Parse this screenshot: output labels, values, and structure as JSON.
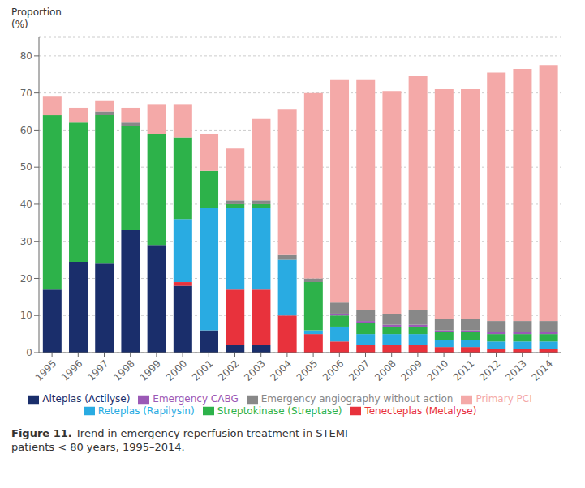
{
  "chart_data": {
    "type": "bar",
    "stacked": true,
    "title": "Figure 11.",
    "subtitle": "Trend in emergency reperfusion treatment in STEMI\npatients < 80 years, 1995–2014.",
    "ylabel": "Proportion\n(%)",
    "categories": [
      "1995",
      "1996",
      "1997",
      "1998",
      "1999",
      "2000",
      "2001",
      "2002",
      "2003",
      "2004",
      "2005",
      "2006",
      "2007",
      "2008",
      "2009",
      "2010",
      "2011",
      "2012",
      "2013",
      "2014"
    ],
    "series": [
      {
        "name": "Alteplas (Actilyse)",
        "color": "#1a2e6b",
        "values": [
          17,
          24.5,
          24,
          33,
          29,
          18,
          6,
          2,
          2,
          0,
          0,
          0,
          0,
          0,
          0,
          0,
          0,
          0,
          0,
          0
        ]
      },
      {
        "name": "Tenecteplas (Metalyse)",
        "color": "#e8323c",
        "values": [
          0,
          0,
          0,
          0,
          0,
          1,
          0,
          15,
          15,
          10,
          5,
          3,
          2,
          2,
          2,
          1.5,
          1.5,
          1,
          1,
          1
        ]
      },
      {
        "name": "Reteplas (Rapilysin)",
        "color": "#29abe2",
        "values": [
          0,
          0,
          0,
          0,
          0,
          17,
          33,
          22,
          22,
          15,
          1,
          4,
          3,
          3,
          3,
          2,
          2,
          2,
          2,
          2
        ]
      },
      {
        "name": "Streptokinase (Streptase)",
        "color": "#2db24a",
        "values": [
          47,
          37.5,
          40,
          28,
          30,
          22,
          10,
          1,
          1,
          0,
          13,
          3,
          3,
          2,
          2,
          2,
          2,
          2,
          2,
          2
        ]
      },
      {
        "name": "Emergency CABG",
        "color": "#9b59b6",
        "values": [
          0,
          0,
          0,
          0,
          0,
          0,
          0,
          0,
          0,
          0,
          0,
          0.5,
          0.5,
          0.5,
          0.5,
          0.5,
          0.5,
          0.5,
          0.5,
          0.5
        ]
      },
      {
        "name": "Emergency angiography without action",
        "color": "#888888",
        "values": [
          0,
          0,
          1,
          1,
          0,
          0,
          0,
          1,
          1,
          1.5,
          1,
          3,
          3,
          3,
          4,
          3,
          3,
          3,
          3,
          3
        ]
      },
      {
        "name": "Primary PCI",
        "color": "#f4a9a8",
        "values": [
          5,
          4,
          3,
          4,
          8,
          9,
          10,
          14,
          22,
          39,
          50,
          60,
          62,
          60,
          63,
          62,
          62,
          67,
          68,
          69
        ]
      }
    ],
    "ylim": [
      0,
      85
    ],
    "yticks": [
      0,
      10,
      20,
      30,
      40,
      50,
      60,
      70,
      80
    ],
    "grid": true,
    "legend": "bottom"
  }
}
